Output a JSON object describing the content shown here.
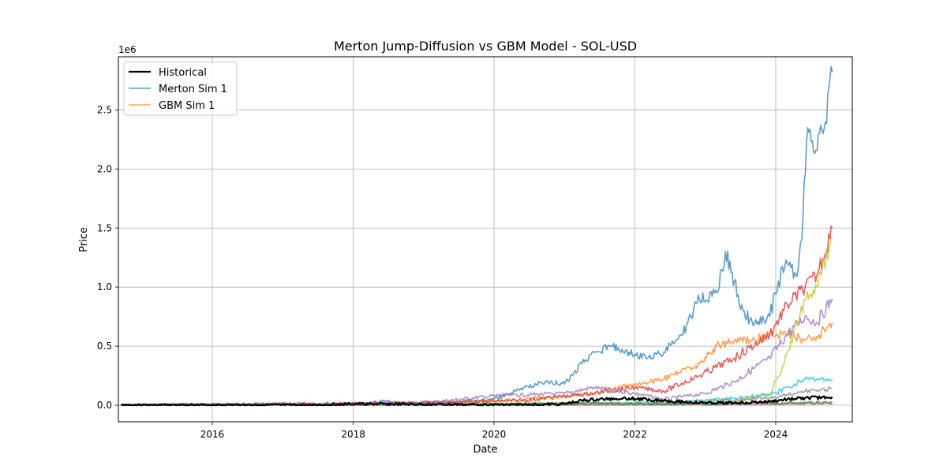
{
  "chart_data": {
    "type": "line",
    "title": "Merton Jump-Diffusion vs GBM Model - SOL-USD",
    "xlabel": "Date",
    "ylabel": "Price",
    "y_offset_label": "1e6",
    "xlim": [
      "2014-09-01",
      "2025-02-01"
    ],
    "ylim": [
      -0.14,
      2.95
    ],
    "y_unit_scale": 1000000,
    "x_tick_labels": [
      "2016",
      "2018",
      "2020",
      "2022",
      "2024"
    ],
    "y_tick_labels": [
      "0.0",
      "0.5",
      "1.0",
      "1.5",
      "2.0",
      "2.5"
    ],
    "grid": true,
    "legend_position": "upper-left",
    "legend": [
      "Historical",
      "Merton Sim 1",
      "GBM Sim 1"
    ],
    "series": [
      {
        "name": "Historical",
        "color": "#000000",
        "x": [
          "2014-09-15",
          "2017-06-01",
          "2018-01-01",
          "2020-06-01",
          "2021-01-01",
          "2021-04-01",
          "2021-11-01",
          "2022-06-01",
          "2022-12-01",
          "2023-06-01",
          "2023-12-01",
          "2024-03-01",
          "2024-06-01",
          "2024-10-20"
        ],
        "y": [
          0.0,
          0.0,
          0.01,
          0.002,
          0.01,
          0.04,
          0.06,
          0.04,
          0.02,
          0.02,
          0.03,
          0.05,
          0.06,
          0.07
        ]
      },
      {
        "name": "Merton Sim 1",
        "color": "#1f77b4",
        "x": [
          "2014-09-15",
          "2018-03-01",
          "2018-06-15",
          "2018-09-01",
          "2019-06-01",
          "2020-01-01",
          "2020-06-01",
          "2020-10-01",
          "2021-01-01",
          "2021-04-01",
          "2021-06-01",
          "2021-09-01",
          "2021-12-01",
          "2022-03-01",
          "2022-06-01",
          "2022-09-01",
          "2022-12-01",
          "2023-03-01",
          "2023-04-15",
          "2023-06-01",
          "2023-07-15",
          "2023-09-01",
          "2023-12-01",
          "2024-01-15",
          "2024-03-01",
          "2024-04-15",
          "2024-05-15",
          "2024-06-15",
          "2024-07-15",
          "2024-08-15",
          "2024-09-15",
          "2024-10-20"
        ],
        "y": [
          0.0,
          0.01,
          0.04,
          0.02,
          0.03,
          0.05,
          0.15,
          0.2,
          0.18,
          0.35,
          0.45,
          0.5,
          0.45,
          0.4,
          0.45,
          0.6,
          0.9,
          0.95,
          1.3,
          1.05,
          0.8,
          0.7,
          0.75,
          1.05,
          1.2,
          1.1,
          1.4,
          2.35,
          2.15,
          2.3,
          2.4,
          2.82
        ]
      },
      {
        "name": "GBM Sim 1",
        "color": "#ff7f0e",
        "x": [
          "2014-09-15",
          "2018-01-01",
          "2019-06-01",
          "2020-06-01",
          "2021-06-01",
          "2022-01-01",
          "2022-06-01",
          "2022-12-01",
          "2023-03-01",
          "2023-06-01",
          "2023-09-01",
          "2023-12-01",
          "2024-03-01",
          "2024-06-01",
          "2024-08-01",
          "2024-10-20"
        ],
        "y": [
          0.0,
          0.01,
          0.02,
          0.05,
          0.1,
          0.18,
          0.22,
          0.35,
          0.5,
          0.55,
          0.55,
          0.6,
          0.6,
          0.55,
          0.58,
          0.7
        ]
      },
      {
        "color": "#d62728",
        "x": [
          "2014-09-15",
          "2019-01-01",
          "2020-06-01",
          "2021-06-01",
          "2022-01-01",
          "2022-06-01",
          "2022-12-01",
          "2023-06-01",
          "2023-12-01",
          "2024-03-01",
          "2024-06-01",
          "2024-08-01",
          "2024-10-20"
        ],
        "y": [
          0.0,
          0.02,
          0.04,
          0.1,
          0.15,
          0.12,
          0.25,
          0.4,
          0.6,
          0.85,
          1.0,
          1.1,
          1.5
        ]
      },
      {
        "color": "#9467bd",
        "x": [
          "2014-09-15",
          "2019-01-01",
          "2020-01-01",
          "2021-01-01",
          "2021-06-01",
          "2022-01-01",
          "2022-06-01",
          "2023-01-01",
          "2023-06-01",
          "2023-12-01",
          "2024-03-01",
          "2024-06-01",
          "2024-08-01",
          "2024-10-20"
        ],
        "y": [
          0.0,
          0.02,
          0.08,
          0.1,
          0.15,
          0.1,
          0.05,
          0.1,
          0.2,
          0.4,
          0.6,
          0.75,
          0.7,
          0.9
        ]
      },
      {
        "color": "#bcbd22",
        "x": [
          "2014-09-15",
          "2023-06-01",
          "2023-12-01",
          "2024-02-01",
          "2024-04-01",
          "2024-06-01",
          "2024-08-01",
          "2024-10-20"
        ],
        "y": [
          0.0,
          0.02,
          0.1,
          0.3,
          0.6,
          0.9,
          1.0,
          1.42
        ]
      },
      {
        "color": "#17becf",
        "x": [
          "2014-09-15",
          "2021-01-01",
          "2022-01-01",
          "2023-01-01",
          "2023-06-01",
          "2024-01-01",
          "2024-06-01",
          "2024-10-20"
        ],
        "y": [
          0.0,
          0.01,
          0.02,
          0.04,
          0.06,
          0.1,
          0.22,
          0.22
        ]
      },
      {
        "color": "#7f7f7f",
        "x": [
          "2014-09-15",
          "2022-01-01",
          "2023-01-01",
          "2024-01-01",
          "2024-06-01",
          "2024-10-20"
        ],
        "y": [
          0.0,
          0.01,
          0.03,
          0.07,
          0.12,
          0.14
        ]
      },
      {
        "color": "#8c564b",
        "x": [
          "2014-09-15",
          "2022-01-01",
          "2023-06-01",
          "2024-06-01",
          "2024-10-20"
        ],
        "y": [
          0.0,
          0.005,
          0.01,
          0.02,
          0.025
        ]
      },
      {
        "color": "#e377c2",
        "x": [
          "2014-09-15",
          "2022-01-01",
          "2023-06-01",
          "2024-06-01",
          "2024-10-20"
        ],
        "y": [
          0.0,
          0.003,
          0.006,
          0.01,
          0.015
        ]
      },
      {
        "color": "#2ca02c",
        "x": [
          "2014-09-15",
          "2019-01-01",
          "2020-06-01",
          "2021-06-01",
          "2022-06-01",
          "2023-06-01",
          "2024-10-20"
        ],
        "y": [
          0.0,
          0.005,
          0.01,
          0.02,
          0.01,
          0.015,
          0.02
        ]
      }
    ]
  }
}
